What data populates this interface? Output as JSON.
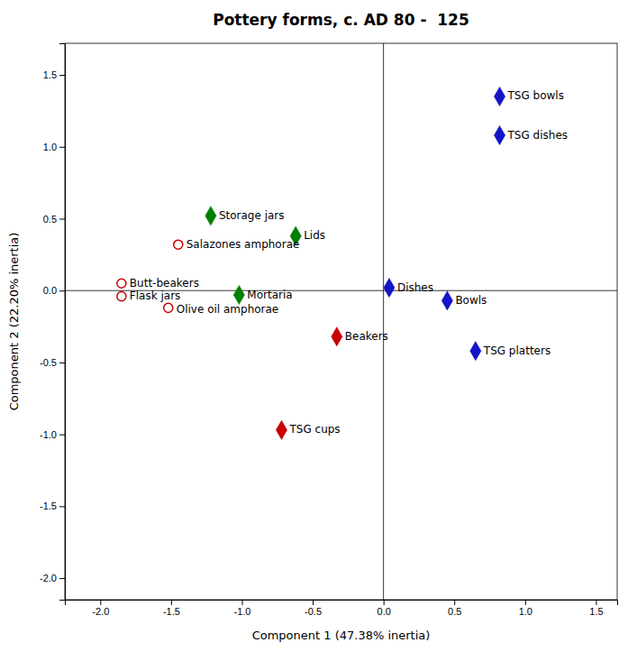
{
  "chart_data": {
    "type": "scatter",
    "title": "Pottery forms, c. AD 80 -  125",
    "x_label": "Component 1 (47.38% inertia)",
    "y_label": "Component 2 (22.20% inertia)",
    "xlim": [
      -2.25,
      1.65
    ],
    "ylim": [
      -2.15,
      1.72
    ],
    "xticks": [
      {
        "value": -2.0,
        "label": "-2.0"
      },
      -1.5,
      {
        "value": -1.0,
        "label": "-1.0"
      },
      -0.5,
      {
        "value": 0.0,
        "label": "0.0"
      },
      0.5,
      {
        "value": 1.0,
        "label": "1.0"
      },
      1.5
    ],
    "yticks": [
      {
        "value": -2.0,
        "label": "-2.0"
      },
      -1.5,
      {
        "value": -1.0,
        "label": "-1.0"
      },
      -0.5,
      {
        "value": 0.0,
        "label": "0.0"
      },
      0.5,
      {
        "value": 1.0,
        "label": "1.0"
      },
      1.5
    ],
    "grid": false,
    "series": [
      {
        "color": "#1414c8",
        "marker": "diamond",
        "labels": [
          "TSG bowls",
          "TSG dishes",
          "TSG platters",
          "Bowls",
          "Dishes"
        ],
        "x": [
          0.82,
          0.82,
          0.65,
          0.45,
          0.04
        ],
        "values": [
          1.35,
          1.08,
          -0.42,
          -0.07,
          0.02
        ]
      },
      {
        "color": "#c80000",
        "marker": "diamond",
        "labels": [
          "Beakers",
          "TSG cups"
        ],
        "x": [
          -0.33,
          -0.72
        ],
        "values": [
          -0.32,
          -0.97
        ]
      },
      {
        "color": "#008000",
        "marker": "diamond",
        "labels": [
          "Storage jars",
          "Lids",
          "Mortaria"
        ],
        "x": [
          -1.22,
          -0.62,
          -1.02
        ],
        "values": [
          0.52,
          0.38,
          -0.03
        ]
      },
      {
        "color": "#c80000",
        "marker": "circle-open",
        "labels": [
          "Salazones amphorae",
          "Butt-beakers",
          "Flask jars",
          "Olive oil amphorae"
        ],
        "x": [
          -1.45,
          -1.85,
          -1.85,
          -1.52
        ],
        "values": [
          0.32,
          0.05,
          -0.04,
          -0.12
        ]
      }
    ]
  }
}
